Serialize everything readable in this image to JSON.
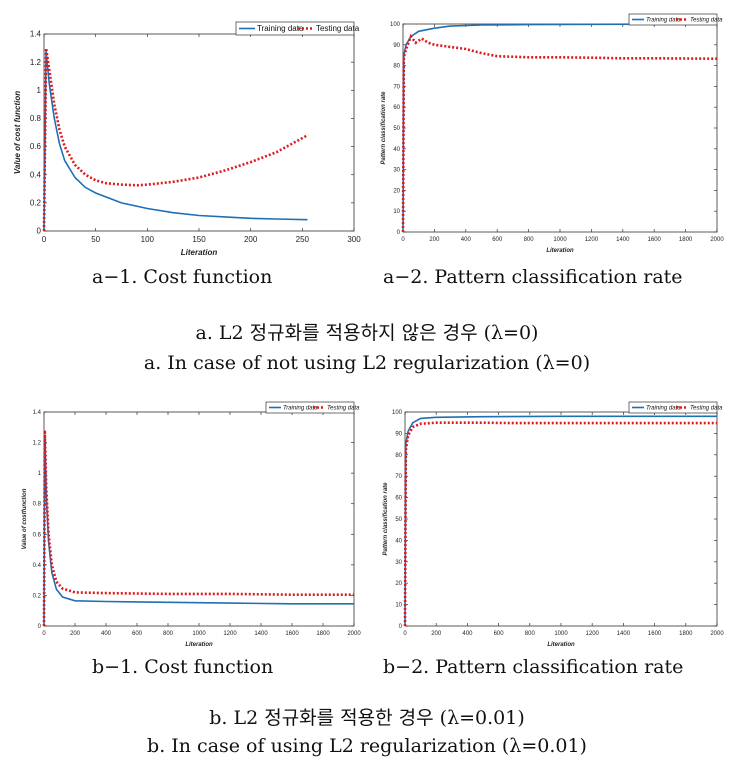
{
  "panels": [
    {
      "subcaption": "a−1. Cost function",
      "chart_data": {
        "type": "line",
        "xlabel": "Literation",
        "ylabel": "Value of cost function",
        "xlim": [
          0,
          300
        ],
        "ylim": [
          0,
          1.4
        ],
        "xticks": [
          0,
          50,
          100,
          150,
          200,
          250,
          300
        ],
        "yticks": [
          0,
          0.2,
          0.4,
          0.6,
          0.8,
          1,
          1.2,
          1.4
        ],
        "ytick_labels": [
          "0",
          "0.2",
          "0.4",
          "0.6",
          "0.8",
          "1",
          "1.2",
          "1.4"
        ],
        "legend": "top-right",
        "series": [
          {
            "name": "Training data",
            "color": "#1f6fb5",
            "style": "solid",
            "x": [
              0,
              2,
              5,
              10,
              15,
              20,
              30,
              40,
              50,
              75,
              100,
              125,
              150,
              175,
              200,
              225,
              255
            ],
            "y": [
              0,
              1.28,
              1.05,
              0.8,
              0.62,
              0.5,
              0.38,
              0.31,
              0.27,
              0.2,
              0.16,
              0.13,
              0.11,
              0.1,
              0.09,
              0.085,
              0.08
            ]
          },
          {
            "name": "Testing data",
            "color": "#e01a1a",
            "style": "dotted",
            "x": [
              0,
              2,
              5,
              10,
              15,
              20,
              30,
              40,
              50,
              60,
              75,
              90,
              100,
              125,
              150,
              175,
              200,
              225,
              255
            ],
            "y": [
              0,
              1.3,
              1.15,
              0.9,
              0.72,
              0.6,
              0.47,
              0.4,
              0.36,
              0.34,
              0.33,
              0.325,
              0.33,
              0.35,
              0.38,
              0.43,
              0.49,
              0.56,
              0.68
            ]
          }
        ]
      }
    },
    {
      "subcaption": "a−2. Pattern classification rate",
      "chart_data": {
        "type": "line",
        "xlabel": "Literation",
        "ylabel": "Pattern classification rate",
        "xlim": [
          0,
          2000
        ],
        "ylim": [
          0,
          100
        ],
        "xticks": [
          0,
          200,
          400,
          600,
          800,
          1000,
          1200,
          1400,
          1600,
          1800,
          2000
        ],
        "yticks": [
          0,
          10,
          20,
          30,
          40,
          50,
          60,
          70,
          80,
          90,
          100
        ],
        "ytick_labels": [
          "0",
          "10",
          "20",
          "30",
          "40",
          "50",
          "60",
          "70",
          "80",
          "90",
          "100"
        ],
        "legend": "top-right",
        "series": [
          {
            "name": "Training data",
            "color": "#1f6fb5",
            "style": "solid",
            "x": [
              0,
              5,
              20,
              50,
              100,
              200,
              300,
              500,
              800,
              1000,
              1500,
              2000
            ],
            "y": [
              0,
              85,
              90,
              94,
              96.5,
              98,
              99,
              99.5,
              99.7,
              99.8,
              99.9,
              99.9
            ]
          },
          {
            "name": "Testing data",
            "color": "#e01a1a",
            "style": "dotted",
            "x": [
              0,
              5,
              20,
              50,
              80,
              120,
              160,
              200,
              300,
              400,
              500,
              600,
              800,
              1000,
              1200,
              1400,
              1600,
              1800,
              2000
            ],
            "y": [
              0,
              84,
              88,
              94,
              91,
              93,
              91,
              90,
              89,
              88,
              86,
              84.5,
              84,
              84,
              83.8,
              83.5,
              83.5,
              83.4,
              83.3
            ]
          }
        ]
      }
    },
    {
      "subcaption": "b−1. Cost function",
      "chart_data": {
        "type": "line",
        "xlabel": "Literation",
        "ylabel": "Value of costfunction",
        "xlim": [
          0,
          2000
        ],
        "ylim": [
          0,
          1.4
        ],
        "xticks": [
          0,
          200,
          400,
          600,
          800,
          1000,
          1200,
          1400,
          1600,
          1800,
          2000
        ],
        "yticks": [
          0,
          0.2,
          0.4,
          0.6,
          0.8,
          1,
          1.2,
          1.4
        ],
        "ytick_labels": [
          "0",
          "0.2",
          "0.4",
          "0.6",
          "0.8",
          "1",
          "1.2",
          "1.4"
        ],
        "legend": "top-right",
        "series": [
          {
            "name": "Training data",
            "color": "#1f6fb5",
            "style": "solid",
            "x": [
              0,
              5,
              15,
              30,
              50,
              80,
              120,
              200,
              400,
              800,
              1200,
              1600,
              2000
            ],
            "y": [
              0,
              1.25,
              0.85,
              0.55,
              0.35,
              0.24,
              0.19,
              0.165,
              0.16,
              0.155,
              0.15,
              0.145,
              0.145
            ]
          },
          {
            "name": "Testing data",
            "color": "#e01a1a",
            "style": "dotted",
            "x": [
              0,
              5,
              15,
              30,
              50,
              80,
              120,
              200,
              400,
              800,
              1200,
              1600,
              2000
            ],
            "y": [
              0,
              1.28,
              0.9,
              0.6,
              0.4,
              0.29,
              0.245,
              0.22,
              0.215,
              0.21,
              0.21,
              0.205,
              0.205
            ]
          }
        ]
      }
    },
    {
      "subcaption": "b−2. Pattern classification rate",
      "chart_data": {
        "type": "line",
        "xlabel": "Literation",
        "ylabel": "Pattern classification rate",
        "xlim": [
          0,
          2000
        ],
        "ylim": [
          0,
          100
        ],
        "xticks": [
          0,
          200,
          400,
          600,
          800,
          1000,
          1200,
          1400,
          1600,
          1800,
          2000
        ],
        "yticks": [
          0,
          10,
          20,
          30,
          40,
          50,
          60,
          70,
          80,
          90,
          100
        ],
        "ytick_labels": [
          "0",
          "10",
          "20",
          "30",
          "40",
          "50",
          "60",
          "70",
          "80",
          "90",
          "100"
        ],
        "legend": "top-right",
        "series": [
          {
            "name": "Training data",
            "color": "#1f6fb5",
            "style": "solid",
            "x": [
              0,
              5,
              20,
              50,
              100,
              200,
              500,
              1000,
              1500,
              2000
            ],
            "y": [
              0,
              85,
              91,
              95,
              97,
              97.5,
              97.8,
              98,
              98,
              98
            ]
          },
          {
            "name": "Testing data",
            "color": "#e01a1a",
            "style": "dotted",
            "x": [
              0,
              5,
              20,
              50,
              100,
              200,
              500,
              700,
              1000,
              1500,
              2000
            ],
            "y": [
              0,
              82,
              89,
              93,
              94.5,
              95,
              95,
              94.8,
              94.8,
              94.8,
              94.8
            ]
          }
        ]
      }
    }
  ],
  "captions": {
    "a_ko": "a. L2 정규화를 적용하지 않은 경우 (λ=0)",
    "a_en": "a. In case of not using L2 regularization (λ=0)",
    "b_ko": "b. L2 정규화를 적용한 경우 (λ=0.01)",
    "b_en": "b. In case of using L2 regularization (λ=0.01)"
  }
}
